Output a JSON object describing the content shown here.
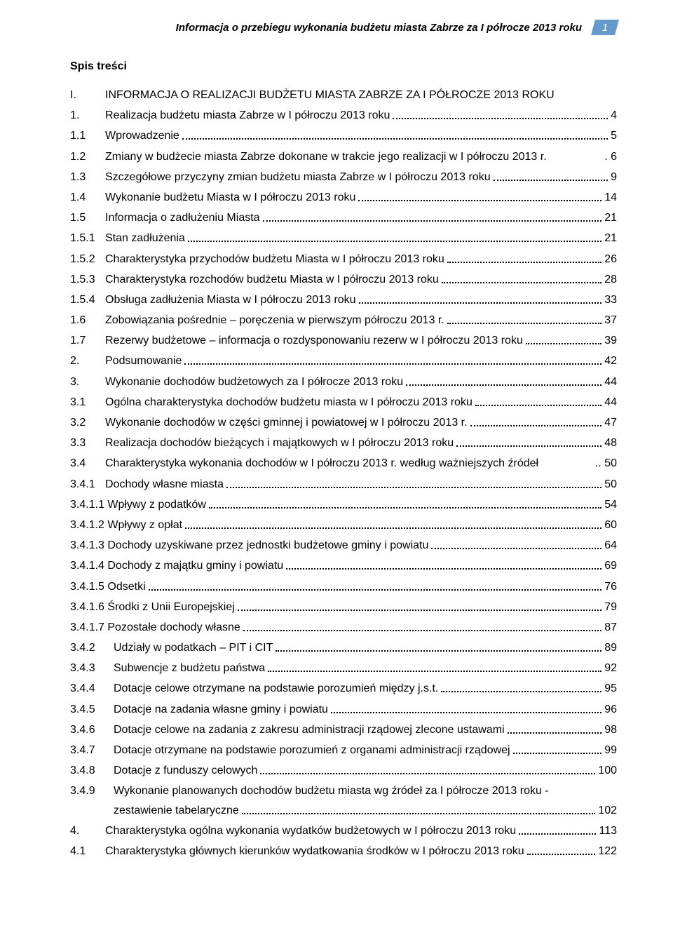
{
  "header": {
    "title": "Informacja o przebiegu wykonania budżetu miasta Zabrze za I półrocze 2013 roku",
    "page_number": "1",
    "badge_bg": "#6699cc",
    "badge_fg": "#ffffff"
  },
  "spis_label": "Spis treści",
  "toc": [
    {
      "num": "I.",
      "numClass": "w-num-1",
      "title": "INFORMACJA O REALIZACJI BUDŻETU MIASTA ZABRZE ZA I PÓŁROCZE 2013 ROKU",
      "page": "",
      "leader": false
    },
    {
      "num": "1.",
      "numClass": "w-num-1",
      "title": "Realizacja budżetu miasta Zabrze w I półroczu 2013 roku",
      "page": "4",
      "leader": true
    },
    {
      "num": "1.1",
      "numClass": "w-num-1",
      "title": "Wprowadzenie",
      "page": "5",
      "leader": true
    },
    {
      "num": "1.2",
      "numClass": "w-num-1",
      "title": "Zmiany w budżecie miasta Zabrze dokonane w trakcie jego realizacji w I półroczu 2013 r.",
      "page": ". 6",
      "leader": false
    },
    {
      "num": "1.3",
      "numClass": "w-num-1",
      "title": "Szczegółowe przyczyny zmian budżetu miasta Zabrze w I półroczu 2013 roku",
      "page": "9",
      "leader": true
    },
    {
      "num": "1.4",
      "numClass": "w-num-1",
      "title": "Wykonanie budżetu Miasta w I półroczu 2013 roku",
      "page": "14",
      "leader": true
    },
    {
      "num": "1.5",
      "numClass": "w-num-1",
      "title": "Informacja o zadłużeniu Miasta",
      "page": "21",
      "leader": true
    },
    {
      "num": "1.5.1",
      "numClass": "w-num-2",
      "title": "Stan zadłużenia",
      "page": "21",
      "leader": true
    },
    {
      "num": "1.5.2",
      "numClass": "w-num-2",
      "title": "Charakterystyka przychodów budżetu Miasta w I półroczu 2013 roku",
      "page": "26",
      "leader": true
    },
    {
      "num": "1.5.3",
      "numClass": "w-num-2",
      "title": "Charakterystyka rozchodów budżetu Miasta w I półroczu 2013 roku",
      "page": "28",
      "leader": true
    },
    {
      "num": "1.5.4",
      "numClass": "w-num-2",
      "title": "Obsługa zadłużenia Miasta w I półroczu 2013 roku",
      "page": "33",
      "leader": true
    },
    {
      "num": "1.6",
      "numClass": "w-num-1",
      "title": "Zobowiązania pośrednie – poręczenia w pierwszym półroczu 2013 r.",
      "page": "37",
      "leader": true
    },
    {
      "num": "1.7",
      "numClass": "w-num-1",
      "title": "Rezerwy budżetowe – informacja o rozdysponowaniu rezerw w I półroczu 2013 roku",
      "page": "39",
      "leader": true
    },
    {
      "num": "2.",
      "numClass": "w-num-1",
      "title": "Podsumowanie",
      "page": "42",
      "leader": true
    },
    {
      "num": "3.",
      "numClass": "w-num-1",
      "title": "Wykonanie dochodów budżetowych za I półrocze 2013 roku",
      "page": "44",
      "leader": true
    },
    {
      "num": "3.1",
      "numClass": "w-num-1",
      "title": "Ogólna charakterystyka dochodów budżetu miasta w I półroczu 2013 roku",
      "page": "44",
      "leader": true
    },
    {
      "num": "3.2",
      "numClass": "w-num-1",
      "title": "Wykonanie dochodów w części gminnej i powiatowej w I półroczu 2013 r.",
      "page": "47",
      "leader": true
    },
    {
      "num": "3.3",
      "numClass": "w-num-1",
      "title": "Realizacja dochodów bieżących i majątkowych w I półroczu 2013 roku",
      "page": "48",
      "leader": true
    },
    {
      "num": "3.4",
      "numClass": "w-num-1",
      "title": "Charakterystyka wykonania dochodów w I półroczu 2013 r. według ważniejszych źródeł",
      "page": ".. 50",
      "leader": false
    },
    {
      "num": "3.4.1",
      "numClass": "w-num-2",
      "title": "Dochody własne miasta",
      "page": "50",
      "leader": true
    },
    {
      "num": "",
      "numClass": "w-num-4",
      "title": "3.4.1.1 Wpływy z podatków",
      "page": "54",
      "leader": true
    },
    {
      "num": "",
      "numClass": "w-num-4",
      "title": "3.4.1.2 Wpływy z opłat",
      "page": "60",
      "leader": true
    },
    {
      "num": "",
      "numClass": "w-num-4",
      "title": "3.4.1.3 Dochody uzyskiwane przez jednostki budżetowe gminy i powiatu",
      "page": "64",
      "leader": true
    },
    {
      "num": "",
      "numClass": "w-num-4",
      "title": "3.4.1.4 Dochody z majątku gminy i powiatu",
      "page": "69",
      "leader": true
    },
    {
      "num": "",
      "numClass": "w-num-4",
      "title": "3.4.1.5 Odsetki",
      "page": "76",
      "leader": true
    },
    {
      "num": "",
      "numClass": "w-num-4",
      "title": "3.4.1.6 Środki z Unii Europejskiej",
      "page": "79",
      "leader": true
    },
    {
      "num": "",
      "numClass": "w-num-4",
      "title": "3.4.1.7 Pozostałe dochody własne",
      "page": "87",
      "leader": true
    },
    {
      "num": "3.4.2",
      "numClass": "w-num-3",
      "title": "Udziały w podatkach – PIT i CIT",
      "page": "89",
      "leader": true
    },
    {
      "num": "3.4.3",
      "numClass": "w-num-3",
      "title": "Subwencje z budżetu państwa",
      "page": "92",
      "leader": true
    },
    {
      "num": "3.4.4",
      "numClass": "w-num-3",
      "title": "Dotacje celowe otrzymane na podstawie porozumień między j.s.t.",
      "page": "95",
      "leader": true
    },
    {
      "num": "3.4.5",
      "numClass": "w-num-3",
      "title": "Dotacje na zadania własne gminy i powiatu",
      "page": "96",
      "leader": true
    },
    {
      "num": "3.4.6",
      "numClass": "w-num-3",
      "title": "Dotacje celowe na zadania z zakresu administracji rządowej zlecone ustawami",
      "page": "98",
      "leader": true
    },
    {
      "num": "3.4.7",
      "numClass": "w-num-3",
      "title": "Dotacje otrzymane na podstawie porozumień z organami administracji rządowej",
      "page": "99",
      "leader": true
    },
    {
      "num": "3.4.8",
      "numClass": "w-num-3",
      "title": "Dotacje z funduszy celowych",
      "page": "100",
      "leader": true
    },
    {
      "num": "3.4.9",
      "numClass": "w-num-3",
      "title": "Wykonanie planowanych dochodów budżetu miasta wg źródeł za I półrocze 2013 roku -",
      "page": "",
      "leader": false
    },
    {
      "num": "",
      "numClass": "w-num-3",
      "title": "zestawienie tabelaryczne",
      "page": "102",
      "leader": true,
      "continuation": true
    },
    {
      "num": "4.",
      "numClass": "w-num-1",
      "title": "Charakterystyka ogólna wykonania wydatków budżetowych w I półroczu 2013 roku",
      "page": "113",
      "leader": true
    },
    {
      "num": "4.1",
      "numClass": "w-num-1",
      "title": "Charakterystyka głównych kierunków wydatkowania środków w I półroczu 2013 roku",
      "page": "122",
      "leader": true
    }
  ]
}
